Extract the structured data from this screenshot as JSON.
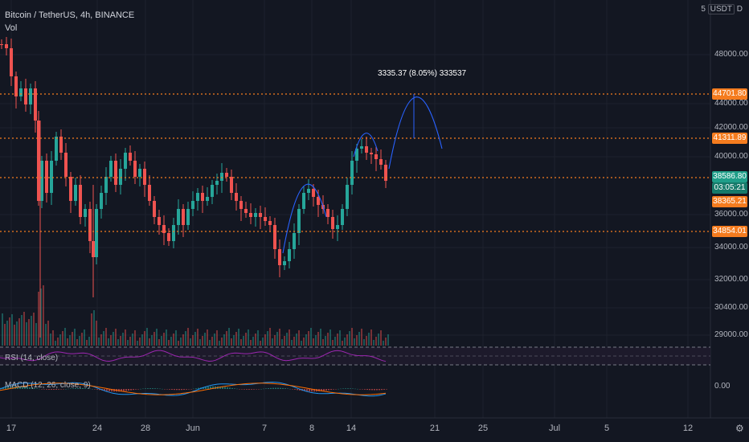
{
  "header": {
    "symbol_title": "Bitcoin / TetherUS, 4h, BINANCE",
    "volume_label": "Vol",
    "rsi_label": "RSI (14, close)",
    "macd_label": "MACD (12, 26, close, 9)"
  },
  "axis": {
    "scale_prefix": "5",
    "currency": "USDT",
    "currency_suffix": "D",
    "price_ticks": [
      "48000.00",
      "44000.00",
      "42000.00",
      "40000.00",
      "36000.00",
      "34000.00",
      "32000.00",
      "30400.00",
      "29000.00"
    ],
    "macd_tick": "0.00",
    "dates": [
      "17",
      "24",
      "28",
      "Jun",
      "7",
      "8",
      "14",
      "21",
      "25",
      "Jul",
      "5",
      "12"
    ]
  },
  "levels": {
    "resistance_high": "44701.80",
    "resistance_mid": "41311.89",
    "current_price": "38586.80",
    "countdown": "03:05:21",
    "support_mid": "38365.21",
    "support_low": "34854.01"
  },
  "measure_label": "3335.37 (8.05%) 333537",
  "colors": {
    "background": "#131722",
    "bull": "#26a69a",
    "bear": "#ef5350",
    "level_line": "#f57c1f",
    "current_line": "#26a69a",
    "rsi": "#9c27b0",
    "macd_line": "#2196f3",
    "signal_line": "#ff6d00",
    "drawing": "#2962ff"
  },
  "icons": {
    "settings": "gear-icon"
  }
}
